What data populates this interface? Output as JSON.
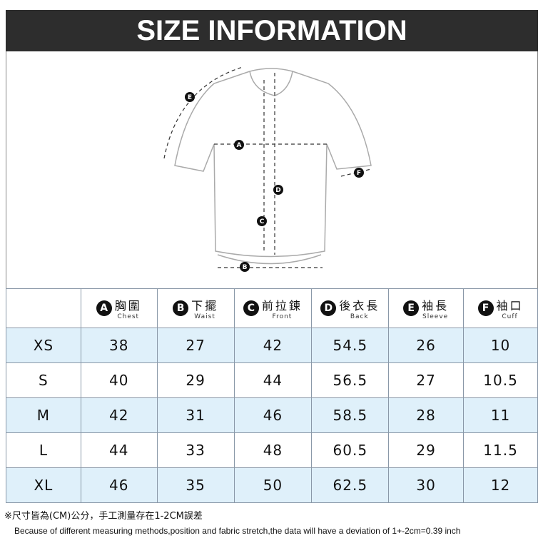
{
  "title": "SIZE INFORMATION",
  "markers": [
    "A",
    "B",
    "C",
    "D",
    "E",
    "F"
  ],
  "columns": [
    {
      "badge": "A",
      "zh": "胸圍",
      "en": "Chest"
    },
    {
      "badge": "B",
      "zh": "下擺",
      "en": "Waist"
    },
    {
      "badge": "C",
      "zh": "前拉鍊",
      "en": "Front"
    },
    {
      "badge": "D",
      "zh": "後衣長",
      "en": "Back"
    },
    {
      "badge": "E",
      "zh": "袖長",
      "en": "Sleeve"
    },
    {
      "badge": "F",
      "zh": "袖口",
      "en": "Cuff"
    }
  ],
  "rows": [
    {
      "size": "XS",
      "values": [
        "38",
        "27",
        "42",
        "54.5",
        "26",
        "10"
      ]
    },
    {
      "size": "S",
      "values": [
        "40",
        "29",
        "44",
        "56.5",
        "27",
        "10.5"
      ]
    },
    {
      "size": "M",
      "values": [
        "42",
        "31",
        "46",
        "58.5",
        "28",
        "11"
      ]
    },
    {
      "size": "L",
      "values": [
        "44",
        "33",
        "48",
        "60.5",
        "29",
        "11.5"
      ]
    },
    {
      "size": "XL",
      "values": [
        "46",
        "35",
        "50",
        "62.5",
        "30",
        "12"
      ]
    }
  ],
  "note_zh": "※尺寸皆為(CM)公分，手工測量存在1-2CM誤差",
  "note_en": "Because of different measuring methods,position and fabric stretch,the data will have a deviation of 1+-2cm=0.39 inch",
  "colors": {
    "banner": "#2d2d2d",
    "row_alt": "#dff0fa"
  }
}
